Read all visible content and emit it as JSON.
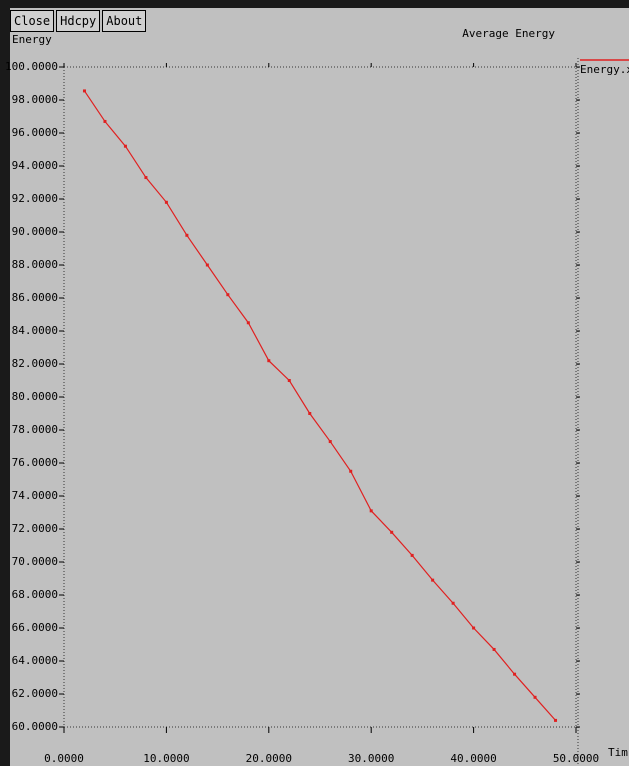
{
  "buttons": [
    "Close",
    "Hdcpy",
    "About"
  ],
  "chart_data": {
    "type": "line",
    "title": "Average Energy",
    "y_label": "Energy",
    "x_label": "Tim",
    "x": [
      2,
      4,
      6,
      8,
      10,
      12,
      14,
      16,
      18,
      20,
      22,
      24,
      26,
      28,
      30,
      32,
      34,
      36,
      38,
      40,
      42,
      44,
      46,
      48
    ],
    "series": [
      {
        "name": "Energy.x",
        "color": "#e02020",
        "values": [
          98.55,
          96.7,
          95.2,
          93.3,
          91.8,
          89.8,
          88.0,
          86.2,
          84.5,
          82.2,
          81.0,
          79.0,
          77.3,
          75.5,
          73.1,
          71.8,
          70.4,
          68.9,
          67.5,
          66.0,
          64.7,
          63.2,
          61.8,
          60.4
        ]
      }
    ],
    "xlim": [
      0,
      50
    ],
    "xticks": [
      {
        "value": 0,
        "label": "0.0000"
      },
      {
        "value": 10,
        "label": "10.0000"
      },
      {
        "value": 20,
        "label": "20.0000"
      },
      {
        "value": 30,
        "label": "30.0000"
      },
      {
        "value": 40,
        "label": "40.0000"
      },
      {
        "value": 50,
        "label": "50.0000"
      }
    ],
    "ylim": [
      60,
      100
    ],
    "yticks": [
      {
        "value": 60,
        "label": "60.0000"
      },
      {
        "value": 62,
        "label": "62.0000"
      },
      {
        "value": 64,
        "label": "64.0000"
      },
      {
        "value": 66,
        "label": "66.0000"
      },
      {
        "value": 68,
        "label": "68.0000"
      },
      {
        "value": 70,
        "label": "70.0000"
      },
      {
        "value": 72,
        "label": "72.0000"
      },
      {
        "value": 74,
        "label": "74.0000"
      },
      {
        "value": 76,
        "label": "76.0000"
      },
      {
        "value": 78,
        "label": "78.0000"
      },
      {
        "value": 80,
        "label": "80.0000"
      },
      {
        "value": 82,
        "label": "82.0000"
      },
      {
        "value": 84,
        "label": "84.0000"
      },
      {
        "value": 86,
        "label": "86.0000"
      },
      {
        "value": 88,
        "label": "88.0000"
      },
      {
        "value": 90,
        "label": "90.0000"
      },
      {
        "value": 92,
        "label": "92.0000"
      },
      {
        "value": 94,
        "label": "94.0000"
      },
      {
        "value": 96,
        "label": "96.0000"
      },
      {
        "value": 98,
        "label": "98.0000"
      },
      {
        "value": 100,
        "label": "100.0000"
      }
    ],
    "grid": false
  }
}
